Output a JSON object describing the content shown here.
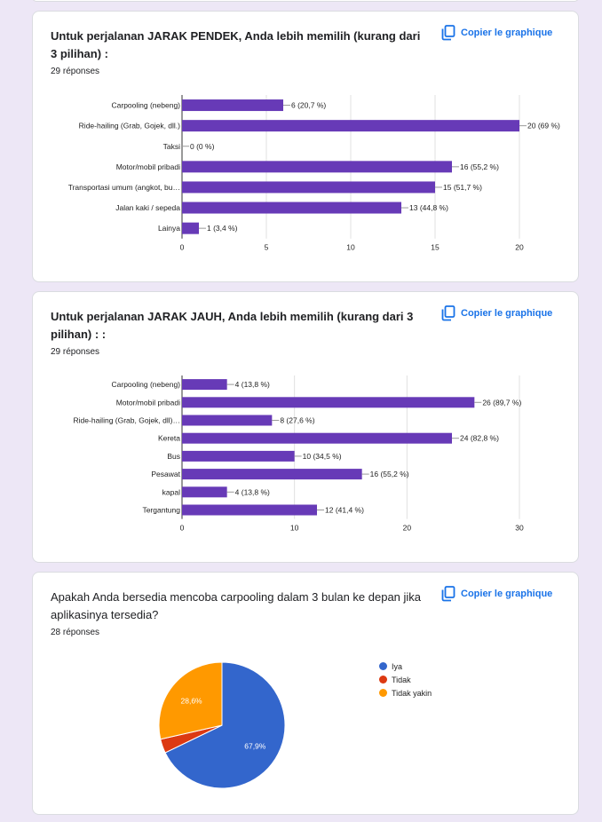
{
  "copy_label": "Copier le graphique",
  "charts": [
    {
      "title": "Untuk perjalanan JARAK PENDEK, Anda lebih memilih (kurang dari 3 pilihan) :",
      "responses": "29 réponses",
      "chart_data": {
        "type": "bar",
        "orientation": "horizontal",
        "categories": [
          "Carpooling (nebeng)",
          "Ride-hailing (Grab, Gojek, dll.)",
          "Taksi",
          "Motor/mobil pribadi",
          "Transportasi umum (angkot, bu…",
          "Jalan kaki / sepeda",
          "Lainya"
        ],
        "values": [
          6,
          20,
          0,
          16,
          15,
          13,
          1
        ],
        "data_labels": [
          "6 (20,7 %)",
          "20 (69 %)",
          "0 (0 %)",
          "16 (55,2 %)",
          "15 (51,7 %)",
          "13 (44,8 %)",
          "1 (3,4 %)"
        ],
        "xlim": [
          0,
          20
        ],
        "xticks": [
          0,
          5,
          10,
          15,
          20
        ],
        "color": "#673ab7",
        "grid": true
      }
    },
    {
      "title": "Untuk perjalanan JARAK JAUH, Anda lebih memilih (kurang dari 3 pilihan) : :",
      "responses": "29 réponses",
      "chart_data": {
        "type": "bar",
        "orientation": "horizontal",
        "categories": [
          "Carpooling (nebeng)",
          "Motor/mobil pribadi",
          "Ride-hailing (Grab, Gojek, dll)…",
          "Kereta",
          "Bus",
          "Pesawat",
          "kapal",
          "Tergantung"
        ],
        "values": [
          4,
          26,
          8,
          24,
          10,
          16,
          4,
          12
        ],
        "data_labels": [
          "4 (13,8 %)",
          "26 (89,7 %)",
          "8 (27,6 %)",
          "24 (82,8 %)",
          "10 (34,5 %)",
          "16 (55,2 %)",
          "4 (13,8 %)",
          "12 (41,4 %)"
        ],
        "xlim": [
          0,
          30
        ],
        "xticks": [
          0,
          10,
          20,
          30
        ],
        "color": "#673ab7",
        "grid": true
      }
    },
    {
      "title": "Apakah Anda bersedia mencoba carpooling dalam 3 bulan ke depan jika aplikasinya tersedia?",
      "responses": "28 réponses",
      "chart_data": {
        "type": "pie",
        "categories": [
          "Iya",
          "Tidak",
          "Tidak yakin"
        ],
        "values": [
          67.9,
          3.6,
          28.6
        ],
        "data_labels": [
          "67,9%",
          "",
          "28,6%"
        ],
        "colors": [
          "#3366cc",
          "#dc3912",
          "#ff9900"
        ],
        "legend": "right"
      }
    }
  ]
}
